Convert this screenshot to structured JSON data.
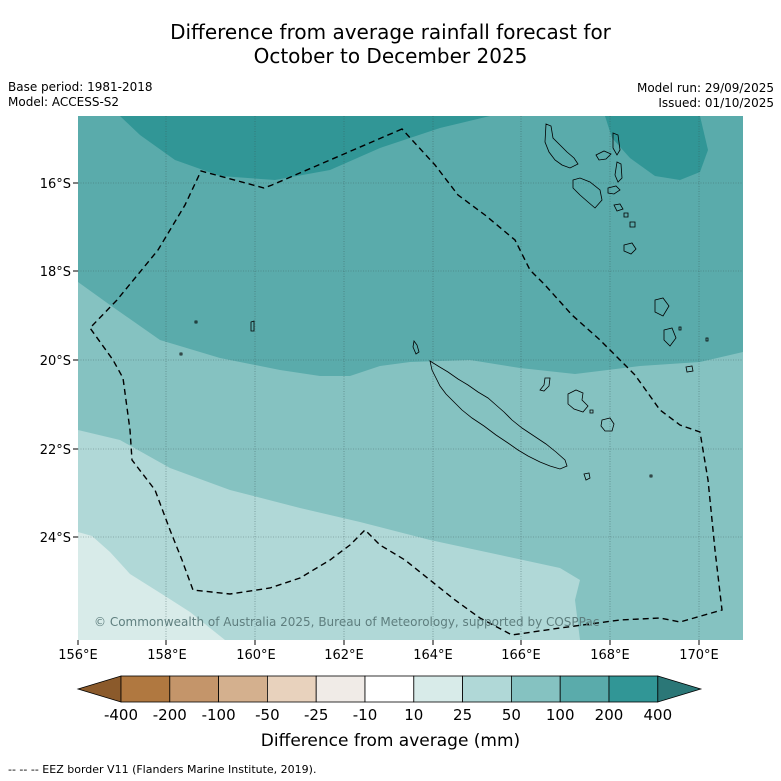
{
  "title_line1": "Difference from average rainfall forecast for",
  "title_line2": "October to December 2025",
  "base_period": "Base period: 1981-2018",
  "model": "Model: ACCESS-S2",
  "model_run": "Model run: 29/09/2025",
  "issued": "Issued: 01/10/2025",
  "copyright": "© Commonwealth of Australia 2025, Bureau of Meteorology, supported by COSPPac",
  "lat_labels": [
    "16°S",
    "18°S",
    "20°S",
    "22°S",
    "24°S"
  ],
  "lon_labels": [
    "156°E",
    "158°E",
    "160°E",
    "162°E",
    "164°E",
    "166°E",
    "168°E",
    "170°E"
  ],
  "colorbar": {
    "title": "Difference from average (mm)",
    "tick_labels": [
      "-400",
      "-200",
      "-100",
      "-50",
      "-25",
      "-10",
      "10",
      "25",
      "50",
      "100",
      "200",
      "400"
    ],
    "colors": [
      "#8b5a2b",
      "#b07840",
      "#c4956a",
      "#d4b08e",
      "#e8d2bd",
      "#f0ebe7",
      "#ffffff",
      "#d8ebe9",
      "#b0d8d7",
      "#85c2c1",
      "#5aabab",
      "#319696",
      "#2b7777"
    ]
  },
  "legend_footnote": "--  --  -- EEZ border V11 (Flanders Marine Institute, 2019)."
}
